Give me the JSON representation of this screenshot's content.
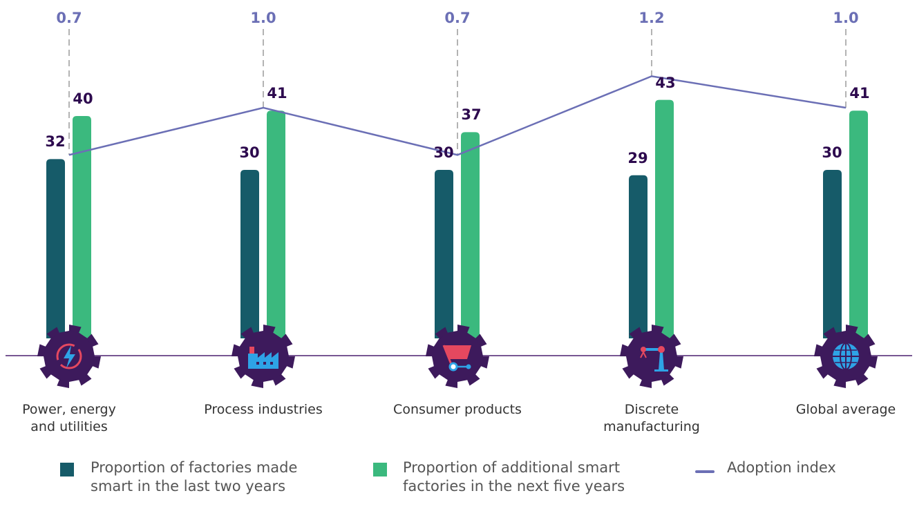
{
  "chart_data": {
    "type": "bar",
    "categories": [
      "Power, energy\nand utilities",
      "Process industries",
      "Consumer products",
      "Discrete\nmanufacturing",
      "Global average"
    ],
    "series": [
      {
        "name": "Proportion of factories made smart in the last two years",
        "values": [
          32,
          30,
          30,
          29,
          30
        ],
        "color": "#165b69"
      },
      {
        "name": "Proportion of additional smart factories in the next five years",
        "values": [
          40,
          41,
          37,
          43,
          41
        ],
        "color": "#3bb97e"
      },
      {
        "name": "Adoption index",
        "type": "line",
        "values": [
          0.7,
          1.0,
          0.7,
          1.2,
          1.0
        ],
        "color": "#6b6fb5"
      }
    ],
    "icons": [
      "power-energy-icon",
      "factory-icon",
      "shopping-cart-icon",
      "robotic-arm-icon",
      "globe-icon"
    ],
    "legend": [
      {
        "label": "Proportion of factories made\nsmart in the last two years",
        "color": "#165b69",
        "kind": "square"
      },
      {
        "label": "Proportion of additional smart\nfactories in the next five years",
        "color": "#3bb97e",
        "kind": "square"
      },
      {
        "label": "Adoption index",
        "color": "#6b6fb5",
        "kind": "line"
      }
    ],
    "value_labels_bar1": [
      "32",
      "30",
      "30",
      "29",
      "30"
    ],
    "value_labels_bar2": [
      "40",
      "41",
      "37",
      "43",
      "41"
    ],
    "index_labels": [
      "0.7",
      "1.0",
      "0.7",
      "1.2",
      "1.0"
    ],
    "legend_position": "bottom",
    "grid": false
  }
}
